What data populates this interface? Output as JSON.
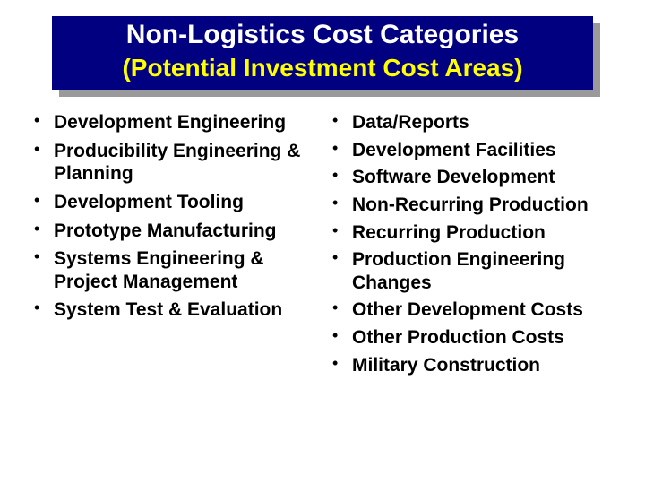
{
  "title": {
    "main": "Non-Logistics Cost Categories",
    "sub": "(Potential Investment Cost Areas)"
  },
  "colors": {
    "title_bg": "#000080",
    "title_shadow": "#9a9a9a",
    "title_main_text": "#ffffff",
    "title_sub_text": "#ffff00",
    "body_text": "#000000",
    "background": "#ffffff"
  },
  "typography": {
    "title_main_fontsize": 30,
    "title_sub_fontsize": 28,
    "bullet_fontsize": 21,
    "font_family": "Arial",
    "font_weight": "bold"
  },
  "left_items": [
    "Development Engineering",
    "Producibility Engineering & Planning",
    "Development Tooling",
    "Prototype Manufacturing",
    "Systems Engineering & Project Management",
    "System Test & Evaluation"
  ],
  "right_items": [
    "Data/Reports",
    "Development Facilities",
    "Software Development",
    "Non-Recurring Production",
    "Recurring Production",
    "Production Engineering Changes",
    "Other Development Costs",
    "Other Production Costs",
    "Military Construction"
  ]
}
